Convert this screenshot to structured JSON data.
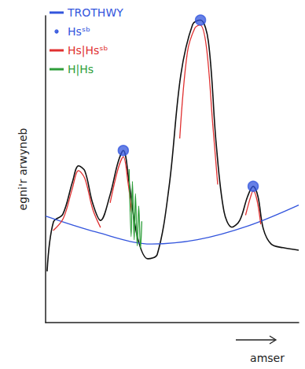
{
  "chart_data": {
    "type": "line",
    "x_label": "amser",
    "y_label": "egni'r arwyneb",
    "xlim": [
      0,
      100
    ],
    "ylim": [
      0,
      100
    ],
    "tick_labels": false,
    "grid": false,
    "legend": "top-left",
    "series": [
      {
        "color": "#111111",
        "type": "line",
        "line_style": "solid",
        "x": [
          0.6,
          3.1,
          6.8,
          10.6,
          13,
          15.5,
          18.6,
          21.7,
          25.5,
          28.6,
          30.7,
          33.2,
          36.3,
          40.4,
          44.1,
          48.8,
          53.4,
          58.1,
          61.2,
          64.3,
          67.4,
          70.5,
          73.6,
          76.7,
          79.8,
          82,
          83.9,
          86,
          89.1,
          93.8,
          100
        ],
        "values": [
          16.7,
          32.8,
          35.3,
          45.8,
          51.1,
          49.4,
          38.9,
          33.3,
          41.7,
          52.2,
          56.1,
          44.4,
          27.8,
          20.8,
          22.2,
          44.4,
          80.6,
          97.2,
          98.6,
          91.7,
          58.3,
          36.1,
          31.1,
          33.3,
          41.1,
          44.4,
          41.1,
          30.6,
          25.6,
          24.4,
          23.6
        ]
      },
      {
        "name": "TROTHWY",
        "color": "#3355dd",
        "type": "line",
        "line_style": "solid",
        "x": [
          0,
          20,
          42,
          60,
          80,
          100
        ],
        "values": [
          34.7,
          29.5,
          25.6,
          27,
          31.5,
          38.3
        ]
      },
      {
        "name": "Hsˢᵇ",
        "color": "#3355dd",
        "type": "scatter",
        "marker": "circle",
        "x": [
          30.7,
          61.2,
          82
        ],
        "values": [
          56.1,
          98.6,
          44.4
        ]
      },
      {
        "name": "Hs|Hsˢᵇ",
        "color": "#e03030",
        "type": "line",
        "line_style": "solid",
        "x": [
          3,
          7,
          10.5,
          13,
          15.5,
          18.6,
          21.7,
          23.5,
          25.5,
          28.6,
          30.7,
          32.5,
          34,
          43,
          53,
          56,
          59,
          61,
          63.5,
          66,
          68,
          74,
          79,
          81,
          82,
          83.5,
          85
        ],
        "values": [
          30,
          34,
          43.5,
          49.5,
          47,
          37,
          31,
          null,
          39,
          50,
          54,
          46,
          36,
          null,
          60,
          88,
          96,
          97,
          90,
          65,
          45,
          null,
          35,
          41,
          43,
          40,
          32
        ]
      },
      {
        "name": "H|Hs",
        "color": "#2e9e3a",
        "type": "line",
        "line_style": "solid",
        "x": [
          33,
          33.8,
          34.3,
          35,
          35.5,
          36.2,
          36.8,
          37.5,
          38
        ],
        "values": [
          50,
          28,
          46,
          27,
          42,
          25,
          38,
          24,
          33
        ]
      }
    ]
  }
}
